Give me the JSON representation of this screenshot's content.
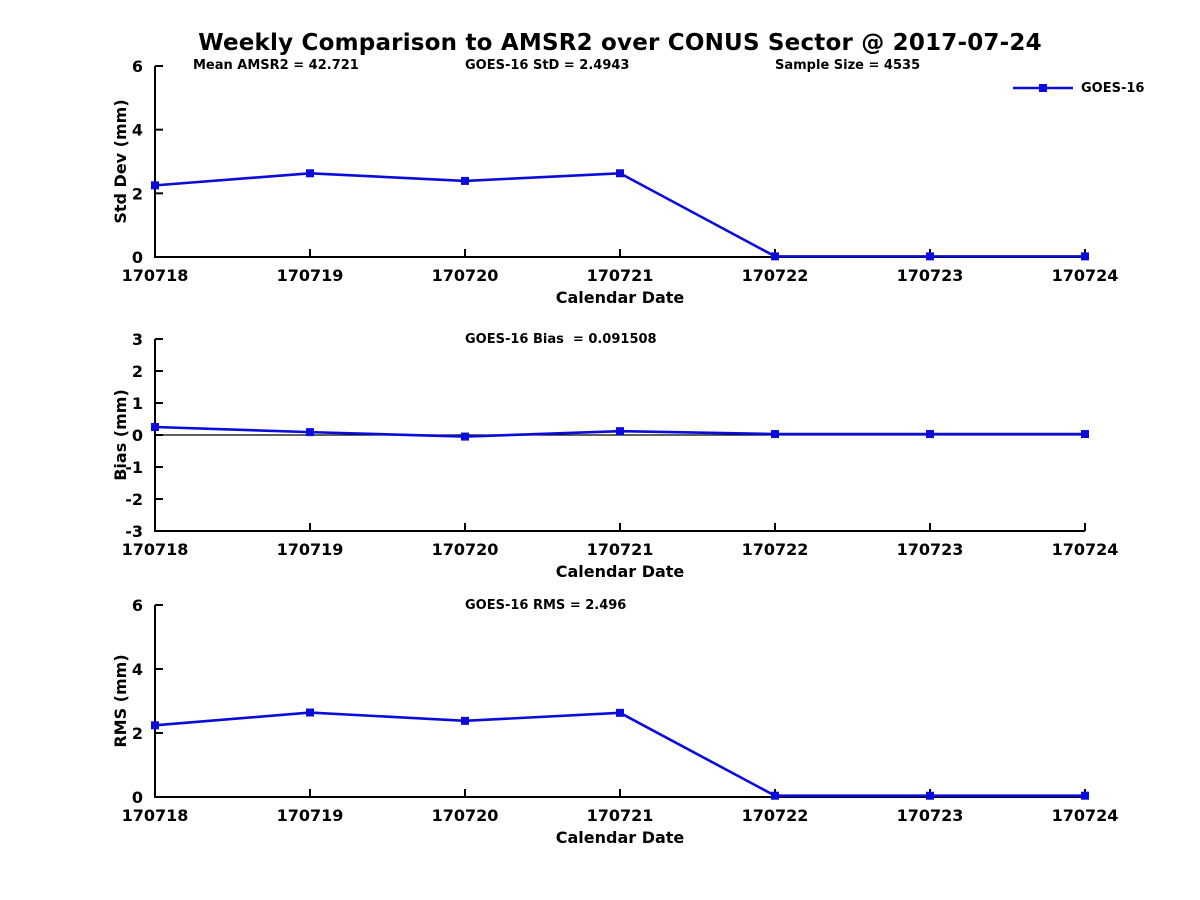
{
  "title": "Weekly Comparison to AMSR2 over CONUS Sector @ 2017-07-24",
  "header_stats": [
    "Mean AMSR2 = 42.721",
    "GOES-16 StD = 2.4943",
    "Sample Size = 4535"
  ],
  "legend": {
    "label": "GOES-16",
    "position": "top-right",
    "marker": "filled-square"
  },
  "colors": {
    "series": "#0b0bdb",
    "axis": "#000000",
    "background": "#ffffff",
    "text": "#000000"
  },
  "chart_data": [
    {
      "type": "line",
      "categories": [
        "170718",
        "170719",
        "170720",
        "170721",
        "170722",
        "170723",
        "170724"
      ],
      "series": [
        {
          "name": "GOES-16",
          "values": [
            2.25,
            2.63,
            2.39,
            2.63,
            0.02,
            0.02,
            0.02
          ]
        }
      ],
      "title": "",
      "annotation": "",
      "xlabel": "Calendar Date",
      "ylabel": "Std Dev (mm)",
      "ylim": [
        0,
        6
      ],
      "yticks": [
        0,
        2,
        4,
        6
      ],
      "grid": false,
      "zero_line": false,
      "marker": "square"
    },
    {
      "type": "line",
      "categories": [
        "170718",
        "170719",
        "170720",
        "170721",
        "170722",
        "170723",
        "170724"
      ],
      "series": [
        {
          "name": "GOES-16",
          "values": [
            0.25,
            0.09,
            -0.05,
            0.12,
            0.03,
            0.03,
            0.03
          ]
        }
      ],
      "title": "",
      "annotation": "GOES-16 Bias  = 0.091508",
      "xlabel": "Calendar Date",
      "ylabel": "Bias (mm)",
      "ylim": [
        -3,
        3
      ],
      "yticks": [
        -3,
        -2,
        -1,
        0,
        1,
        2,
        3
      ],
      "grid": false,
      "zero_line": true,
      "marker": "square"
    },
    {
      "type": "line",
      "categories": [
        "170718",
        "170719",
        "170720",
        "170721",
        "170722",
        "170723",
        "170724"
      ],
      "series": [
        {
          "name": "GOES-16",
          "values": [
            2.24,
            2.64,
            2.38,
            2.63,
            0.04,
            0.04,
            0.04
          ]
        }
      ],
      "title": "",
      "annotation": "GOES-16 RMS = 2.496",
      "xlabel": "Calendar Date",
      "ylabel": "RMS (mm)",
      "ylim": [
        0,
        6
      ],
      "yticks": [
        0,
        2,
        4,
        6
      ],
      "grid": false,
      "zero_line": false,
      "marker": "square"
    }
  ]
}
